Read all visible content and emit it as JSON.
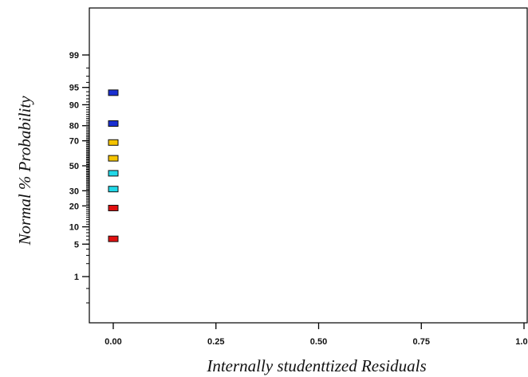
{
  "chart_data": {
    "type": "scatter",
    "title": "",
    "xlabel": "Internally studenttized Residuals",
    "ylabel": "Normal % Probability",
    "xlim": [
      0.0,
      1.0
    ],
    "x_ticks": [
      "0.00",
      "0.25",
      "0.50",
      "0.75",
      "1.00"
    ],
    "y_scale": "normal-probability",
    "y_ticks": [
      "1",
      "5",
      "10",
      "20",
      "30",
      "50",
      "70",
      "80",
      "90",
      "95",
      "99"
    ],
    "grid": false,
    "legend": "none",
    "points": [
      {
        "x": 0.0,
        "y": 93.75,
        "color": "#1a2fd1"
      },
      {
        "x": 0.0,
        "y": 81.25,
        "color": "#1a2fd1"
      },
      {
        "x": 0.0,
        "y": 68.75,
        "color": "#f5c400"
      },
      {
        "x": 0.0,
        "y": 56.25,
        "color": "#f5c400"
      },
      {
        "x": 0.0,
        "y": 43.75,
        "color": "#20d8e8"
      },
      {
        "x": 0.0,
        "y": 31.25,
        "color": "#20d8e8"
      },
      {
        "x": 0.0,
        "y": 18.75,
        "color": "#e01010"
      },
      {
        "x": 0.0,
        "y": 6.25,
        "color": "#e01010"
      }
    ]
  }
}
